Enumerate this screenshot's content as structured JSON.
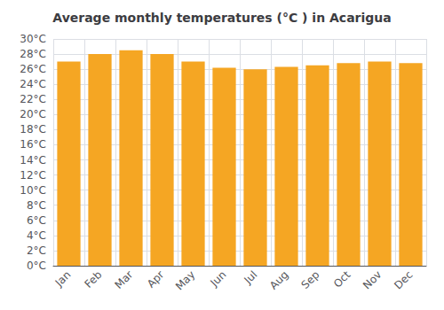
{
  "chart_data": {
    "type": "bar",
    "title": "Average monthly temperatures (°C ) in Acarigua",
    "categories": [
      "Jan",
      "Feb",
      "Mar",
      "Apr",
      "May",
      "Jun",
      "Jul",
      "Aug",
      "Sep",
      "Oct",
      "Nov",
      "Dec"
    ],
    "values": [
      27.0,
      28.0,
      28.5,
      28.0,
      27.0,
      26.2,
      26.0,
      26.3,
      26.5,
      26.8,
      27.0,
      26.8
    ],
    "color": "#F5A623",
    "ylim": [
      0,
      30
    ],
    "yticks": [
      {
        "value": 0,
        "label": "0°C"
      },
      {
        "value": 2,
        "label": "2°C"
      },
      {
        "value": 4,
        "label": "4°C"
      },
      {
        "value": 6,
        "label": "6°C"
      },
      {
        "value": 8,
        "label": "8°C"
      },
      {
        "value": 10,
        "label": "10°C"
      },
      {
        "value": 12,
        "label": "12°C"
      },
      {
        "value": 14,
        "label": "14°C"
      },
      {
        "value": 16,
        "label": "16°C"
      },
      {
        "value": 18,
        "label": "18°C"
      },
      {
        "value": 20,
        "label": "20°C"
      },
      {
        "value": 22,
        "label": "22°C"
      },
      {
        "value": 24,
        "label": "24°C"
      },
      {
        "value": 26,
        "label": "26°C"
      },
      {
        "value": 28,
        "label": "28°C"
      },
      {
        "value": 30,
        "label": "30°C"
      }
    ],
    "grid": true
  }
}
